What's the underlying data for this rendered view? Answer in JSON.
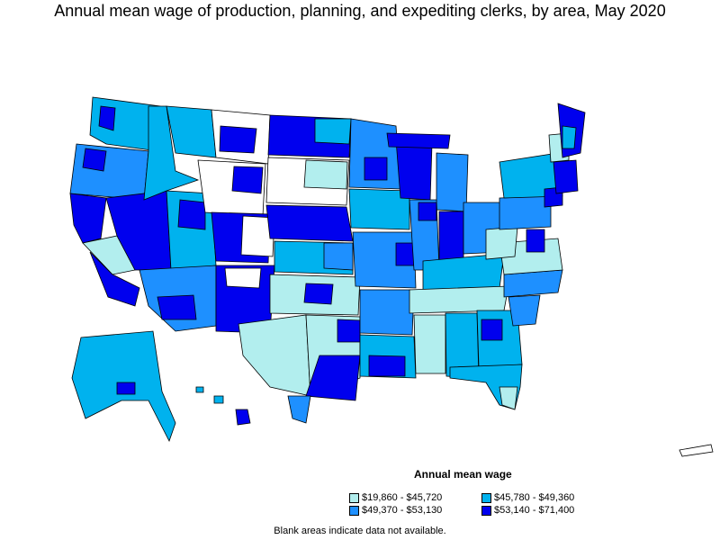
{
  "title": "Annual mean wage of production, planning, and expediting clerks, by area, May 2020",
  "legend": {
    "title": "Annual mean wage",
    "items": [
      {
        "label": "$19,860 - $45,720",
        "color": "#b2eeee"
      },
      {
        "label": "$45,780 - $49,360",
        "color": "#00b2ee"
      },
      {
        "label": "$49,370 - $53,130",
        "color": "#1e90ff"
      },
      {
        "label": "$53,140 - $71,400",
        "color": "#0000ee"
      }
    ]
  },
  "footnote": "Blank areas indicate data not available.",
  "colors": {
    "no_data": "#ffffff",
    "border": "#000000"
  }
}
